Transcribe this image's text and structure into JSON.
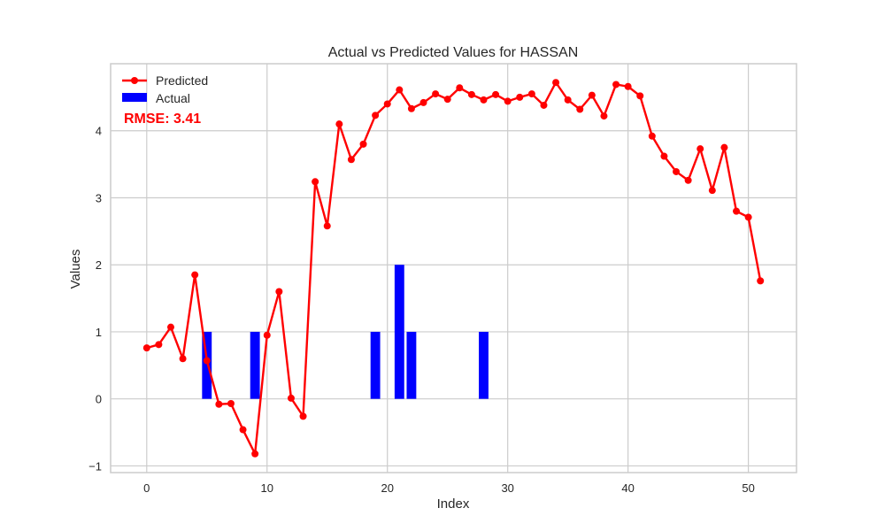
{
  "chart_data": {
    "type": "bar+line",
    "title": "Actual vs Predicted Values for HASSAN",
    "xlabel": "Index",
    "ylabel": "Values",
    "xlim": [
      -3,
      54
    ],
    "ylim": [
      -1.1,
      5.0
    ],
    "xticks": [
      0,
      10,
      20,
      30,
      40,
      50
    ],
    "yticks": [
      -1,
      0,
      1,
      2,
      3,
      4
    ],
    "ytick_labels": [
      "−1",
      "0",
      "1",
      "2",
      "3",
      "4"
    ],
    "grid": true,
    "legend_position": "top-left",
    "series": [
      {
        "name": "Predicted",
        "kind": "line",
        "color": "#ff0000",
        "x": [
          0,
          1,
          2,
          3,
          4,
          5,
          6,
          7,
          8,
          9,
          10,
          11,
          12,
          13,
          14,
          15,
          16,
          17,
          18,
          19,
          20,
          21,
          22,
          23,
          24,
          25,
          26,
          27,
          28,
          29,
          30,
          31,
          32,
          33,
          34,
          35,
          36,
          37,
          38,
          39,
          40,
          41,
          42,
          43,
          44,
          45,
          46,
          47,
          48,
          49,
          50,
          51
        ],
        "values": [
          0.76,
          0.81,
          1.07,
          0.6,
          1.85,
          0.57,
          -0.08,
          -0.07,
          -0.46,
          -0.82,
          0.95,
          1.6,
          0.01,
          -0.26,
          3.24,
          2.58,
          4.1,
          3.57,
          3.8,
          4.23,
          4.4,
          4.61,
          4.33,
          4.42,
          4.55,
          4.47,
          4.64,
          4.54,
          4.46,
          4.54,
          4.44,
          4.5,
          4.55,
          4.38,
          4.72,
          4.46,
          4.32,
          4.53,
          4.22,
          4.69,
          4.66,
          4.52,
          3.92,
          3.62,
          3.39,
          3.26,
          3.73,
          3.11,
          3.75,
          2.8,
          2.71,
          1.76
        ]
      },
      {
        "name": "Actual",
        "kind": "bar",
        "color": "#0000ff",
        "x": [
          5,
          9,
          19,
          21,
          22,
          28
        ],
        "values": [
          1,
          1,
          1,
          2,
          1,
          1
        ]
      }
    ],
    "annotations": [
      {
        "text": "RMSE: 3.41",
        "color": "#ff0000"
      }
    ]
  }
}
